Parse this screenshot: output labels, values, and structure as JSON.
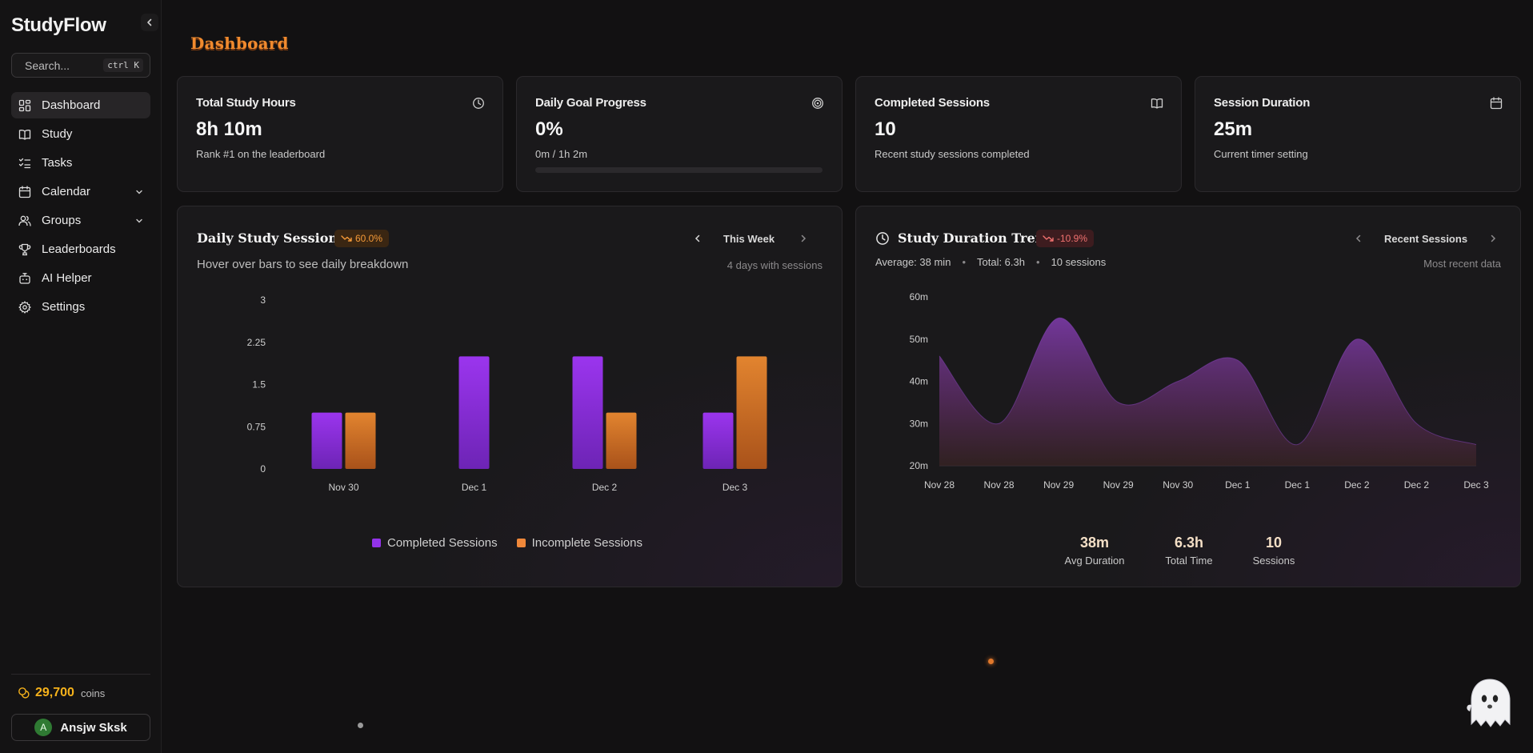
{
  "sidebar": {
    "brand": "StudyFlow",
    "search": {
      "placeholder": "Search...",
      "shortcut": "ctrl K"
    },
    "items": [
      {
        "label": "Dashboard",
        "icon": "dashboard-icon",
        "active": true
      },
      {
        "label": "Study",
        "icon": "book-icon"
      },
      {
        "label": "Tasks",
        "icon": "tasks-icon"
      },
      {
        "label": "Calendar",
        "icon": "calendar-icon",
        "expandable": true
      },
      {
        "label": "Groups",
        "icon": "users-icon",
        "expandable": true
      },
      {
        "label": "Leaderboards",
        "icon": "trophy-icon"
      },
      {
        "label": "AI Helper",
        "icon": "bot-icon"
      },
      {
        "label": "Settings",
        "icon": "gear-icon"
      }
    ],
    "coins": {
      "value": "29,700",
      "label": "coins"
    },
    "user": {
      "initial": "A",
      "name": "Ansjw Sksk"
    }
  },
  "header": {
    "title": "Dashboard"
  },
  "stats": [
    {
      "title": "Total Study Hours",
      "value": "8h 10m",
      "sub": "Rank #1 on the leaderboard",
      "icon": "clock-icon"
    },
    {
      "title": "Daily Goal Progress",
      "value": "0%",
      "sub": "0m / 1h 2m",
      "icon": "target-icon",
      "progress": 0
    },
    {
      "title": "Completed Sessions",
      "value": "10",
      "sub": "Recent study sessions completed",
      "icon": "book-open-icon"
    },
    {
      "title": "Session Duration",
      "value": "25m",
      "sub": "Current timer setting",
      "icon": "calendar-icon"
    }
  ],
  "daily_panel": {
    "title": "Daily Study Sessions",
    "badge": "60.0%",
    "range": "This Week",
    "subtitle": "Hover over bars to see daily breakdown",
    "days_note": "4 days with sessions",
    "legend": [
      {
        "label": "Completed Sessions",
        "color": "#9333ea"
      },
      {
        "label": "Incomplete Sessions",
        "color": "#f0883a"
      }
    ]
  },
  "trend_panel": {
    "title": "Study Duration Trend",
    "badge": "-10.9%",
    "range": "Recent Sessions",
    "average": "Average: 38 min",
    "total": "Total: 6.3h",
    "sessions": "10 sessions",
    "note": "Most recent data",
    "summary": [
      {
        "value": "38m",
        "label": "Avg Duration"
      },
      {
        "value": "6.3h",
        "label": "Total Time"
      },
      {
        "value": "10",
        "label": "Sessions"
      }
    ]
  },
  "colors": {
    "accent": "#f08a2e",
    "purple": "#9333ea",
    "orange": "#f0883a",
    "coin": "#f6b21b"
  },
  "chart_data": [
    {
      "type": "bar",
      "title": "Daily Study Sessions",
      "categories": [
        "Nov 30",
        "Dec 1",
        "Dec 2",
        "Dec 3"
      ],
      "series": [
        {
          "name": "Completed Sessions",
          "values": [
            1,
            2,
            2,
            1
          ]
        },
        {
          "name": "Incomplete Sessions",
          "values": [
            1,
            0,
            1,
            2
          ]
        }
      ],
      "yticks": [
        "0",
        "0.75",
        "1.5",
        "2.25",
        "3"
      ],
      "ylim": [
        0,
        3
      ]
    },
    {
      "type": "area",
      "title": "Study Duration Trend",
      "x": [
        "Nov 28",
        "Nov 28",
        "Nov 29",
        "Nov 29",
        "Nov 30",
        "Dec 1",
        "Dec 1",
        "Dec 2",
        "Dec 2",
        "Dec 3"
      ],
      "values": [
        46,
        30,
        55,
        35,
        40,
        45,
        25,
        50,
        30,
        25
      ],
      "yticks": [
        "20m",
        "30m",
        "40m",
        "50m",
        "60m"
      ],
      "ylim": [
        20,
        60
      ]
    }
  ]
}
